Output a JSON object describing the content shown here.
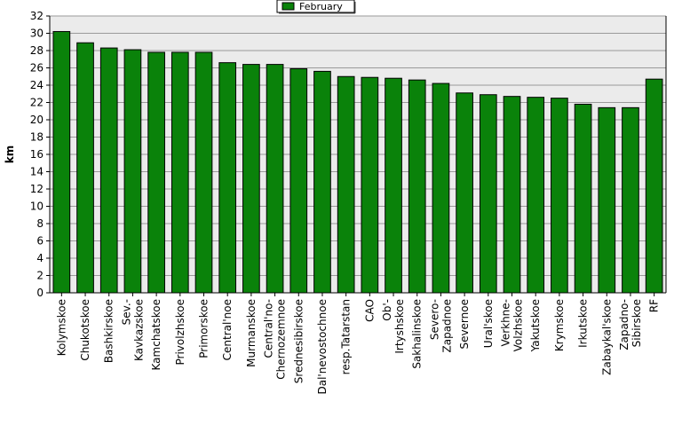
{
  "chart_data": {
    "type": "bar",
    "ylabel": "km",
    "ylim": [
      0,
      32
    ],
    "ytick_step": 2,
    "grid": true,
    "legend_position": "top-center",
    "series": [
      {
        "name": "February",
        "color": "#0a820a",
        "values": [
          30.2,
          28.9,
          28.3,
          28.1,
          27.8,
          27.8,
          27.8,
          26.6,
          26.4,
          26.4,
          25.9,
          25.6,
          25.0,
          24.9,
          24.8,
          24.6,
          24.2,
          23.1,
          22.9,
          22.7,
          22.6,
          22.5,
          21.8,
          21.4,
          21.4,
          24.7
        ]
      }
    ],
    "categories": [
      [
        "Kolymskoe"
      ],
      [
        "Chukotskoe"
      ],
      [
        "Bashkirskoe"
      ],
      [
        "Sev.-",
        "Kavkazskoe"
      ],
      [
        "Kamchatskoe"
      ],
      [
        "Privolzhskoe"
      ],
      [
        "Primorskoe"
      ],
      [
        "Central'noe"
      ],
      [
        "Murmanskoe"
      ],
      [
        "Central'no-",
        "Chernozemnoe"
      ],
      [
        "Srednesibirskoe"
      ],
      [
        "Dal'nevostochnoe"
      ],
      [
        "resp.Tatarstan"
      ],
      [
        "CAO"
      ],
      [
        "Ob'-",
        "Irtyshskoe"
      ],
      [
        "Sakhalinskoe"
      ],
      [
        "Severo-",
        "Zapadnoe"
      ],
      [
        "Severnoe"
      ],
      [
        "Ural'skoe"
      ],
      [
        "Verkhne-",
        "Volzhskoe"
      ],
      [
        "Yakutskoe"
      ],
      [
        "Krymskoe"
      ],
      [
        "Irkutskoe"
      ],
      [
        "Zabaykal'skoe"
      ],
      [
        "Zapadno-",
        "Sibirskoe"
      ],
      [
        "RF"
      ]
    ],
    "colors": {
      "plot_background": "#ebebeb",
      "grid": "#9a9a9a",
      "bar_border": "#000000"
    }
  }
}
